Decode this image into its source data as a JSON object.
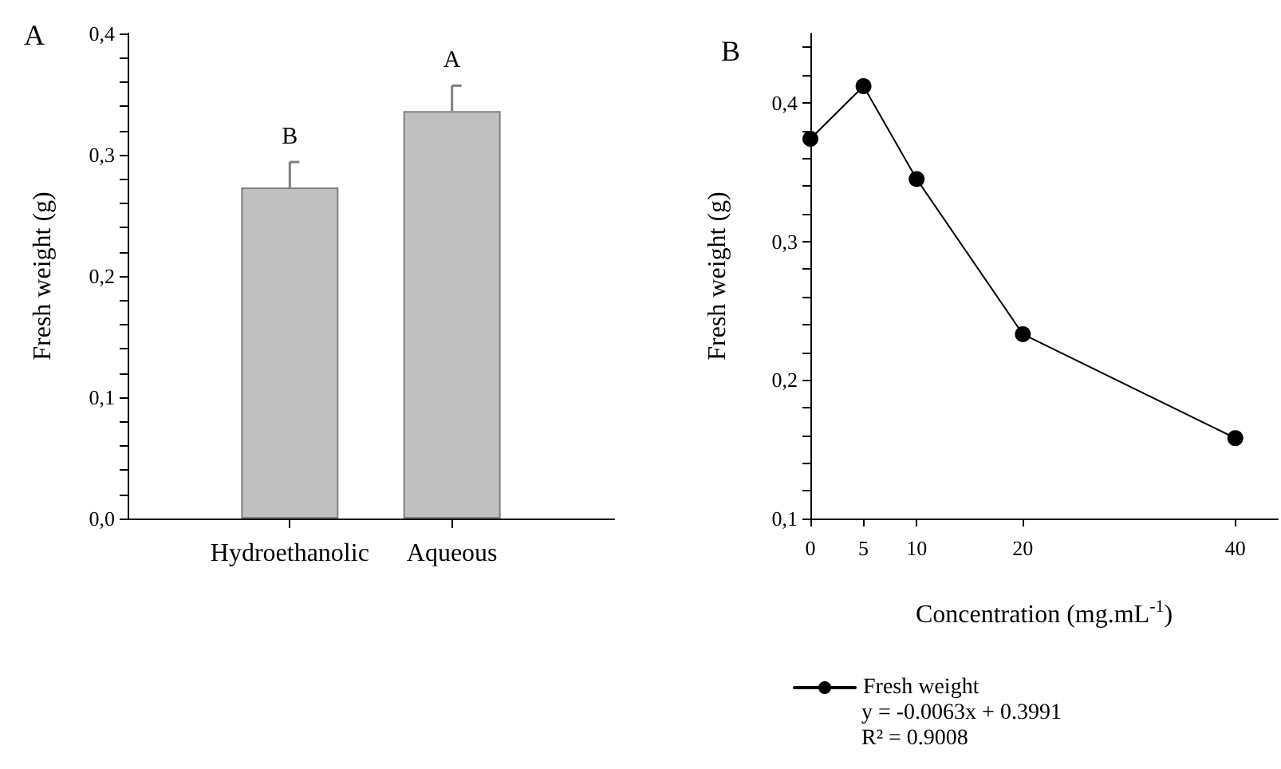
{
  "chart_data": [
    {
      "type": "bar",
      "title": "A",
      "ylabel": "Fresh weight (g)",
      "categories": [
        "Hydroethanolic",
        "Aqueous"
      ],
      "values": [
        0.273,
        0.336
      ],
      "errors": [
        [
          0.273,
          0.294
        ],
        [
          0.336,
          0.357
        ]
      ],
      "color": "#c0c0c0",
      "ylim": [
        0,
        0.4
      ],
      "yticks": [
        {
          "value": 0,
          "label": "0,0"
        },
        {
          "value": 0.02,
          "label": null
        },
        {
          "value": 0.04,
          "label": null
        },
        {
          "value": 0.06,
          "label": null
        },
        {
          "value": 0.08,
          "label": null
        },
        {
          "value": 0.1,
          "label": "0,1"
        },
        {
          "value": 0.12,
          "label": null
        },
        {
          "value": 0.14,
          "label": null
        },
        {
          "value": 0.16,
          "label": null
        },
        {
          "value": 0.18,
          "label": null
        },
        {
          "value": 0.2,
          "label": "0,2"
        },
        {
          "value": 0.22,
          "label": null
        },
        {
          "value": 0.24,
          "label": null
        },
        {
          "value": 0.26,
          "label": null
        },
        {
          "value": 0.28,
          "label": null
        },
        {
          "value": 0.3,
          "label": "0,3"
        },
        {
          "value": 0.32,
          "label": null
        },
        {
          "value": 0.34,
          "label": null
        },
        {
          "value": 0.36,
          "label": null
        },
        {
          "value": 0.38,
          "label": null
        },
        {
          "value": 0.4,
          "label": "0,4"
        }
      ],
      "annotations": [
        {
          "text": "B",
          "x": "Hydroethanolic",
          "y": 0.294
        },
        {
          "text": "A",
          "x": "Aqueous",
          "y": 0.357
        }
      ],
      "grid": false
    },
    {
      "type": "line",
      "title": "B",
      "xlabel": "Concentration (mg.mL$^{-1}$)",
      "ylabel": "Fresh weight (g)",
      "x": [
        0,
        5,
        10,
        20,
        40
      ],
      "series": [
        {
          "name": "Fresh weight",
          "color": "#000000",
          "values": [
            0.374,
            0.412,
            0.345,
            0.233,
            0.158
          ]
        }
      ],
      "xlim": [
        0,
        44
      ],
      "xticks": [
        0,
        5,
        10,
        20,
        40
      ],
      "ylim": [
        0.1,
        0.45
      ],
      "yticks": [
        {
          "value": 0.1,
          "label": "0,1"
        },
        {
          "value": 0.12,
          "label": null
        },
        {
          "value": 0.14,
          "label": null
        },
        {
          "value": 0.16,
          "label": null
        },
        {
          "value": 0.18,
          "label": null
        },
        {
          "value": 0.2,
          "label": "0,2"
        },
        {
          "value": 0.22,
          "label": null
        },
        {
          "value": 0.24,
          "label": null
        },
        {
          "value": 0.26,
          "label": null
        },
        {
          "value": 0.28,
          "label": null
        },
        {
          "value": 0.3,
          "label": "0,3"
        },
        {
          "value": 0.32,
          "label": null
        },
        {
          "value": 0.34,
          "label": null
        },
        {
          "value": 0.36,
          "label": null
        },
        {
          "value": 0.38,
          "label": null
        },
        {
          "value": 0.4,
          "label": "0,4"
        },
        {
          "value": 0.42,
          "label": null
        },
        {
          "value": 0.44,
          "label": null
        }
      ],
      "annotations": [
        "y = -0.0063x + 0.3991",
        "R² = 0.9008"
      ],
      "marker": "circle",
      "line_style": "solid",
      "legend": "bottom",
      "grid": false
    }
  ]
}
